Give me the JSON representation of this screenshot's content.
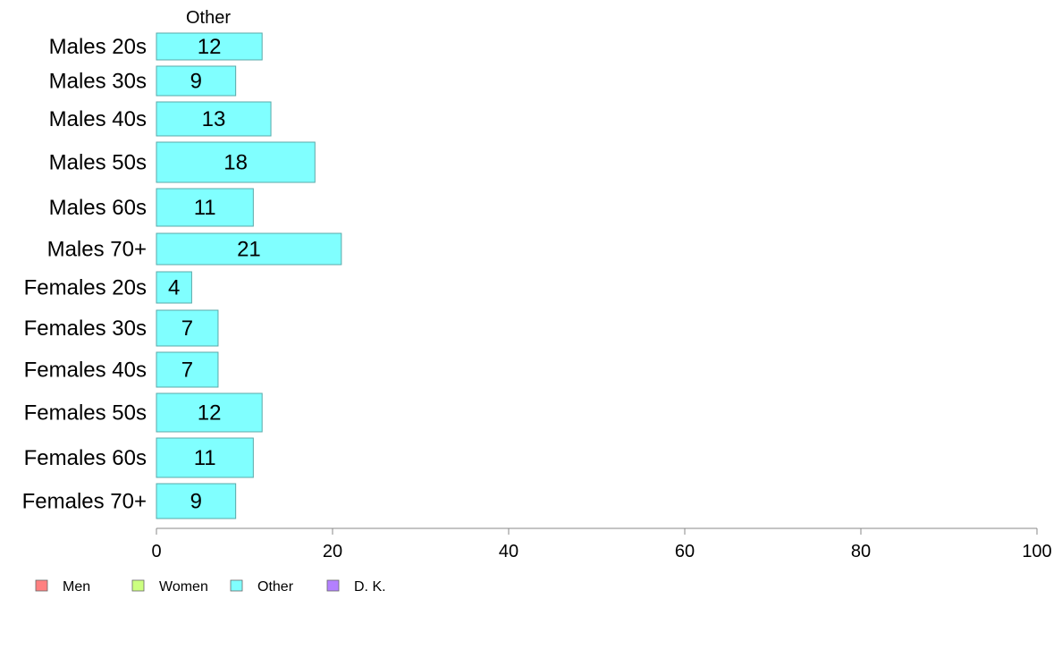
{
  "chart_data": {
    "type": "bar",
    "orientation": "horizontal",
    "column_title": "Other",
    "categories": [
      "Males 20s",
      "Males 30s",
      "Males 40s",
      "Males 50s",
      "Males 60s",
      "Males 70+",
      "Females 20s",
      "Females 30s",
      "Females 40s",
      "Females 50s",
      "Females 60s",
      "Females 70+"
    ],
    "series": [
      {
        "name": "Other",
        "values": [
          12,
          9,
          13,
          18,
          11,
          21,
          4,
          7,
          7,
          12,
          11,
          9
        ]
      }
    ],
    "value_labels": [
      "12",
      "9",
      "13",
      "18",
      "11",
      "21",
      "4",
      "7",
      "7",
      "12",
      "11",
      "9"
    ],
    "xlim": [
      0,
      100
    ],
    "xticks": [
      0,
      20,
      40,
      60,
      80,
      100
    ],
    "xlabel": "",
    "ylabel": "",
    "grid": false,
    "legend": {
      "position": "bottom-left",
      "items": [
        {
          "label": "Men",
          "color": "#ff8080"
        },
        {
          "label": "Women",
          "color": "#ccff80"
        },
        {
          "label": "Other",
          "color": "#80ffff"
        },
        {
          "label": "D. K.",
          "color": "#b380ff"
        }
      ]
    },
    "colors": {
      "bar_fill": "#80ffff",
      "bar_stroke": "#5aa8a8",
      "axis": "#888888"
    }
  }
}
